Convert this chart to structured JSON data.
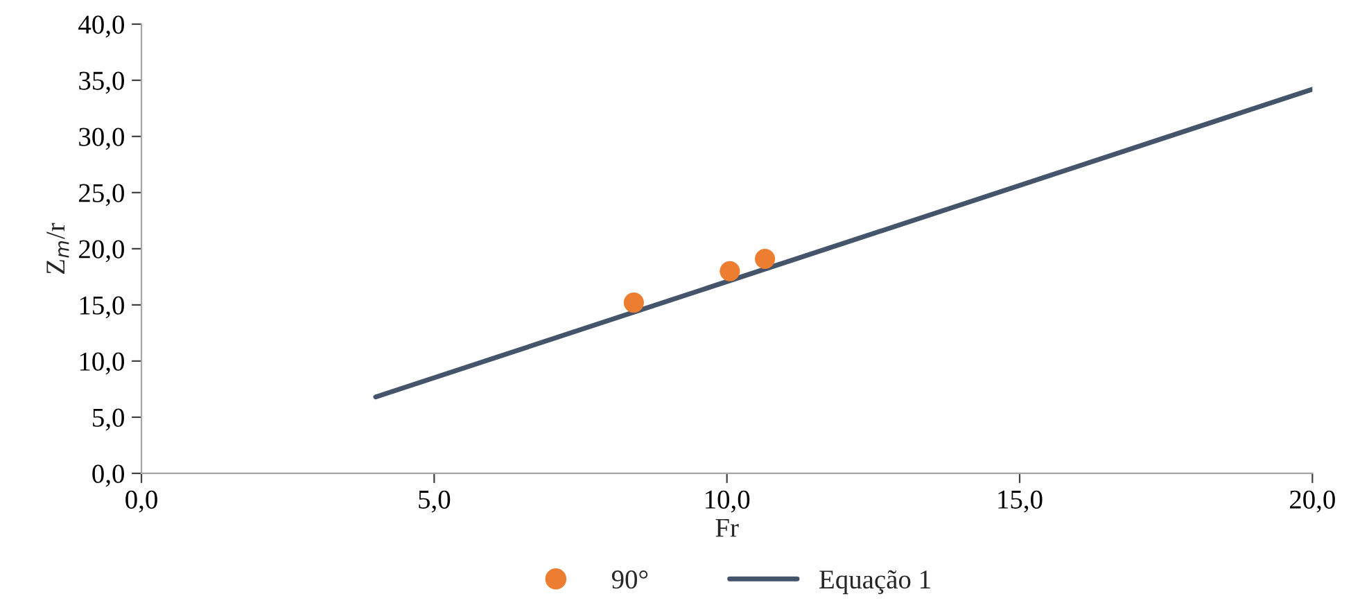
{
  "chart_data": {
    "type": "scatter",
    "xlabel": "Fr",
    "ylabel": "Z$_{m}$/r",
    "series": [
      {
        "name": "90°",
        "color": "#ed7d31",
        "marker": "circle",
        "x": [
          8.41,
          10.05,
          10.65
        ],
        "values": [
          15.2,
          18.0,
          19.1
        ]
      },
      {
        "name": "Equação 1",
        "type": "line",
        "color": "#44546a",
        "marker": "none",
        "line_style": "solid",
        "x": [
          4.0,
          20.0
        ],
        "values": [
          6.8,
          34.2
        ]
      }
    ],
    "xlim": [
      0,
      20
    ],
    "ylim": [
      0,
      40
    ],
    "xticks": [
      {
        "value": 0,
        "label": "0,0"
      },
      {
        "value": 5,
        "label": "5,0"
      },
      {
        "value": 10,
        "label": "10,0"
      },
      {
        "value": 15,
        "label": "15,0"
      },
      {
        "value": 20,
        "label": "20,0"
      }
    ],
    "yticks": [
      {
        "value": 0,
        "label": "0,0"
      },
      {
        "value": 5,
        "label": "5,0"
      },
      {
        "value": 10,
        "label": "10,0"
      },
      {
        "value": 15,
        "label": "15,0"
      },
      {
        "value": 20,
        "label": "20,0"
      },
      {
        "value": 25,
        "label": "25,0"
      },
      {
        "value": 30,
        "label": "30,0"
      },
      {
        "value": 35,
        "label": "35,0"
      },
      {
        "value": 40,
        "label": "40,0"
      }
    ],
    "grid": false,
    "legend": "bottom"
  }
}
